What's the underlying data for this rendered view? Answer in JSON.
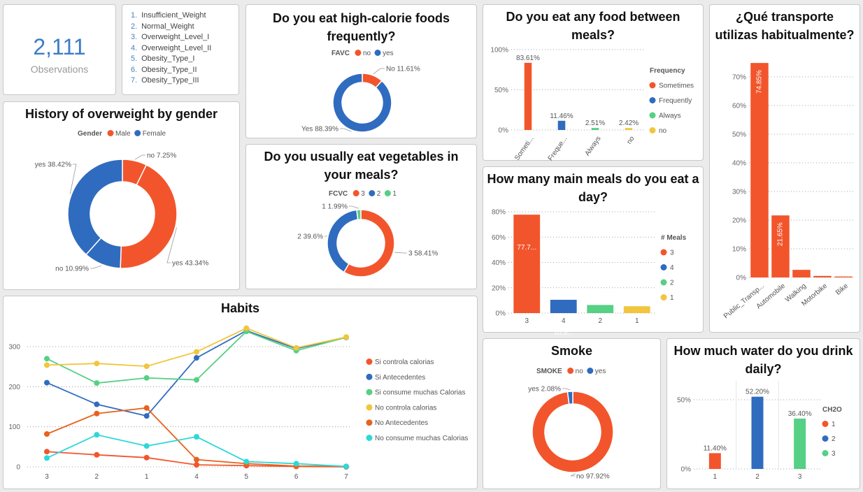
{
  "kpi": {
    "value": "2,111",
    "label": "Observations"
  },
  "classes": [
    {
      "num": "1.",
      "name": "Insufficient_Weight"
    },
    {
      "num": "2.",
      "name": "Normal_Weight"
    },
    {
      "num": "3.",
      "name": "Overweight_Level_I"
    },
    {
      "num": "4.",
      "name": "Overweight_Level_II"
    },
    {
      "num": "5.",
      "name": "Obesity_Type_I"
    },
    {
      "num": "6.",
      "name": "Obesity_Type_II"
    },
    {
      "num": "7.",
      "name": "Obesity_Type_III"
    }
  ],
  "colors": {
    "red": "#f2552c",
    "blue": "#2f6cbf",
    "green": "#56d084",
    "yellow": "#f2c53d",
    "orange": "#e8621e",
    "cyan": "#2ed8d8"
  },
  "chart_data": [
    {
      "id": "favc",
      "type": "donut",
      "title": "Do you eat high-calorie foods frequently?",
      "legend_title": "FAVC",
      "legend": [
        {
          "label": "no",
          "color": "#f2552c"
        },
        {
          "label": "yes",
          "color": "#2f6cbf"
        }
      ],
      "slices": [
        {
          "label": "No 11.61%",
          "value": 11.61,
          "color": "#f2552c"
        },
        {
          "label": "Yes 88.39%",
          "value": 88.39,
          "color": "#2f6cbf"
        }
      ]
    },
    {
      "id": "history",
      "type": "donut",
      "title": "History of overweight by gender",
      "legend_title": "Gender",
      "legend": [
        {
          "label": "Male",
          "color": "#f2552c"
        },
        {
          "label": "Female",
          "color": "#2f6cbf"
        }
      ],
      "slices": [
        {
          "label": "no 7.25%",
          "value": 7.25,
          "color": "#f2552c"
        },
        {
          "label": "yes 43.34%",
          "value": 43.34,
          "color": "#f2552c"
        },
        {
          "label": "no 10.99%",
          "value": 10.99,
          "color": "#2f6cbf"
        },
        {
          "label": "yes 38.42%",
          "value": 38.42,
          "color": "#2f6cbf"
        }
      ]
    },
    {
      "id": "fcvc",
      "type": "donut",
      "title": "Do you usually eat vegetables in your meals?",
      "legend_title": "FCVC",
      "legend": [
        {
          "label": "3",
          "color": "#f2552c"
        },
        {
          "label": "2",
          "color": "#2f6cbf"
        },
        {
          "label": "1",
          "color": "#56d084"
        }
      ],
      "slices": [
        {
          "label": "3 58.41%",
          "value": 58.41,
          "color": "#f2552c"
        },
        {
          "label": "2 39.6%",
          "value": 39.6,
          "color": "#2f6cbf"
        },
        {
          "label": "1 1.99%",
          "value": 1.99,
          "color": "#56d084"
        }
      ]
    },
    {
      "id": "smoke",
      "type": "donut",
      "title": "Smoke",
      "legend_title": "SMOKE",
      "legend": [
        {
          "label": "no",
          "color": "#f2552c"
        },
        {
          "label": "yes",
          "color": "#2f6cbf"
        }
      ],
      "slices": [
        {
          "label": "no 97.92%",
          "value": 97.92,
          "color": "#f2552c"
        },
        {
          "label": "yes 2.08%",
          "value": 2.08,
          "color": "#2f6cbf"
        }
      ]
    },
    {
      "id": "between",
      "type": "bar",
      "title": "Do you eat any food between meals?",
      "categories": [
        "Someti...",
        "Freque...",
        "Always",
        "no"
      ],
      "values": [
        83.61,
        11.46,
        2.51,
        2.42
      ],
      "value_labels": [
        "83.61%",
        "11.46%",
        "2.51%",
        "2.42%"
      ],
      "colors": [
        "#f2552c",
        "#2f6cbf",
        "#56d084",
        "#f2c53d"
      ],
      "ylim": [
        0,
        100
      ],
      "yticks": [
        {
          "v": 0,
          "t": "0%"
        },
        {
          "v": 50,
          "t": "50%"
        },
        {
          "v": 100,
          "t": "100%"
        }
      ],
      "legend_title": "Frequency",
      "legend": [
        {
          "label": "Sometimes",
          "color": "#f2552c"
        },
        {
          "label": "Frequently",
          "color": "#2f6cbf"
        },
        {
          "label": "Always",
          "color": "#56d084"
        },
        {
          "label": "no",
          "color": "#f2c53d"
        }
      ]
    },
    {
      "id": "meals",
      "type": "bar",
      "title": "How many main meals do you eat a day?",
      "categories": [
        "3",
        "4",
        "2",
        "1"
      ],
      "values": [
        77.7,
        10.5,
        6.4,
        5.4
      ],
      "value_labels": [
        "77.7...",
        "10.5...",
        "",
        ""
      ],
      "colors": [
        "#f2552c",
        "#2f6cbf",
        "#56d084",
        "#f2c53d"
      ],
      "ylim": [
        0,
        80
      ],
      "yticks": [
        {
          "v": 0,
          "t": "0%"
        },
        {
          "v": 20,
          "t": "20%"
        },
        {
          "v": 40,
          "t": "40%"
        },
        {
          "v": 60,
          "t": "60%"
        },
        {
          "v": 80,
          "t": "80%"
        }
      ],
      "legend_title": "# Meals",
      "legend": [
        {
          "label": "3",
          "color": "#f2552c"
        },
        {
          "label": "4",
          "color": "#2f6cbf"
        },
        {
          "label": "2",
          "color": "#56d084"
        },
        {
          "label": "1",
          "color": "#f2c53d"
        }
      ]
    },
    {
      "id": "transport",
      "type": "bar",
      "title": "¿Qué transporte utilizas habitualmente?",
      "categories": [
        "Public_Transp...",
        "Automobile",
        "Walking",
        "Motorbike",
        "Bike"
      ],
      "values": [
        74.85,
        21.65,
        2.65,
        0.53,
        0.33
      ],
      "value_labels": [
        "74.85%",
        "21.65%",
        "",
        "",
        ""
      ],
      "colors": [
        "#f2552c",
        "#f2552c",
        "#f2552c",
        "#f2552c",
        "#f2552c"
      ],
      "ylim": [
        0,
        70
      ],
      "yticks": [
        {
          "v": 0,
          "t": "0%"
        },
        {
          "v": 10,
          "t": "10%"
        },
        {
          "v": 20,
          "t": "20%"
        },
        {
          "v": 30,
          "t": "30%"
        },
        {
          "v": 40,
          "t": "40%"
        },
        {
          "v": 50,
          "t": "50%"
        },
        {
          "v": 60,
          "t": "60%"
        },
        {
          "v": 70,
          "t": "70%"
        }
      ]
    },
    {
      "id": "water",
      "type": "bar",
      "title": "How much water do you drink daily?",
      "categories": [
        "1",
        "2",
        "3"
      ],
      "values": [
        11.4,
        52.2,
        36.4
      ],
      "value_labels": [
        "11.40%",
        "52.20%",
        "36.40%"
      ],
      "colors": [
        "#f2552c",
        "#2f6cbf",
        "#56d084"
      ],
      "ylim": [
        0,
        50
      ],
      "yticks": [
        {
          "v": 0,
          "t": "0%"
        },
        {
          "v": 50,
          "t": "50%"
        }
      ],
      "legend_title": "CH2O",
      "legend": [
        {
          "label": "1",
          "color": "#f2552c"
        },
        {
          "label": "2",
          "color": "#2f6cbf"
        },
        {
          "label": "3",
          "color": "#56d084"
        }
      ]
    },
    {
      "id": "habits",
      "type": "line",
      "title": "Habits",
      "x": [
        "3",
        "2",
        "1",
        "4",
        "5",
        "6",
        "7"
      ],
      "ylim": [
        0,
        300
      ],
      "yticks": [
        0,
        100,
        200,
        300
      ],
      "series": [
        {
          "name": "Si controla calorias",
          "color": "#f2552c",
          "values": [
            38,
            30,
            23,
            5,
            3,
            1,
            0
          ]
        },
        {
          "name": "Si Antecedentes",
          "color": "#2f6cbf",
          "values": [
            210,
            156,
            127,
            272,
            340,
            295,
            323
          ]
        },
        {
          "name": "Si consume muchas Calorias",
          "color": "#56d084",
          "values": [
            270,
            209,
            222,
            217,
            338,
            290,
            323
          ]
        },
        {
          "name": "No controla calorias",
          "color": "#f2c53d",
          "values": [
            254,
            258,
            251,
            287,
            346,
            297,
            324
          ]
        },
        {
          "name": "No Antecedentes",
          "color": "#e8621e",
          "values": [
            82,
            133,
            147,
            18,
            8,
            2,
            1
          ]
        },
        {
          "name": "No consume muchas Calorias",
          "color": "#2ed8d8",
          "values": [
            22,
            80,
            52,
            75,
            13,
            8,
            1
          ]
        }
      ]
    }
  ]
}
